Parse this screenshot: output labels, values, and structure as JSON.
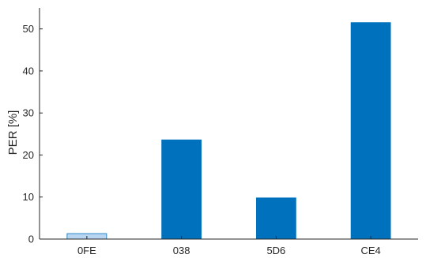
{
  "chart_data": {
    "type": "bar",
    "categories": [
      "0FE",
      "038",
      "5D6",
      "CE4"
    ],
    "values": [
      1.3,
      23.6,
      9.8,
      51.5
    ],
    "bar_colors": [
      "#b8d5f2",
      "#0072bd",
      "#0072bd",
      "#0072bd"
    ],
    "bar_edge_color": "#0072bd",
    "title": "",
    "xlabel": "",
    "ylabel": "PER [%]",
    "ylim": [
      0,
      55
    ],
    "yticks": [
      0,
      10,
      20,
      30,
      40,
      50
    ],
    "grid": false,
    "legend": "none"
  }
}
